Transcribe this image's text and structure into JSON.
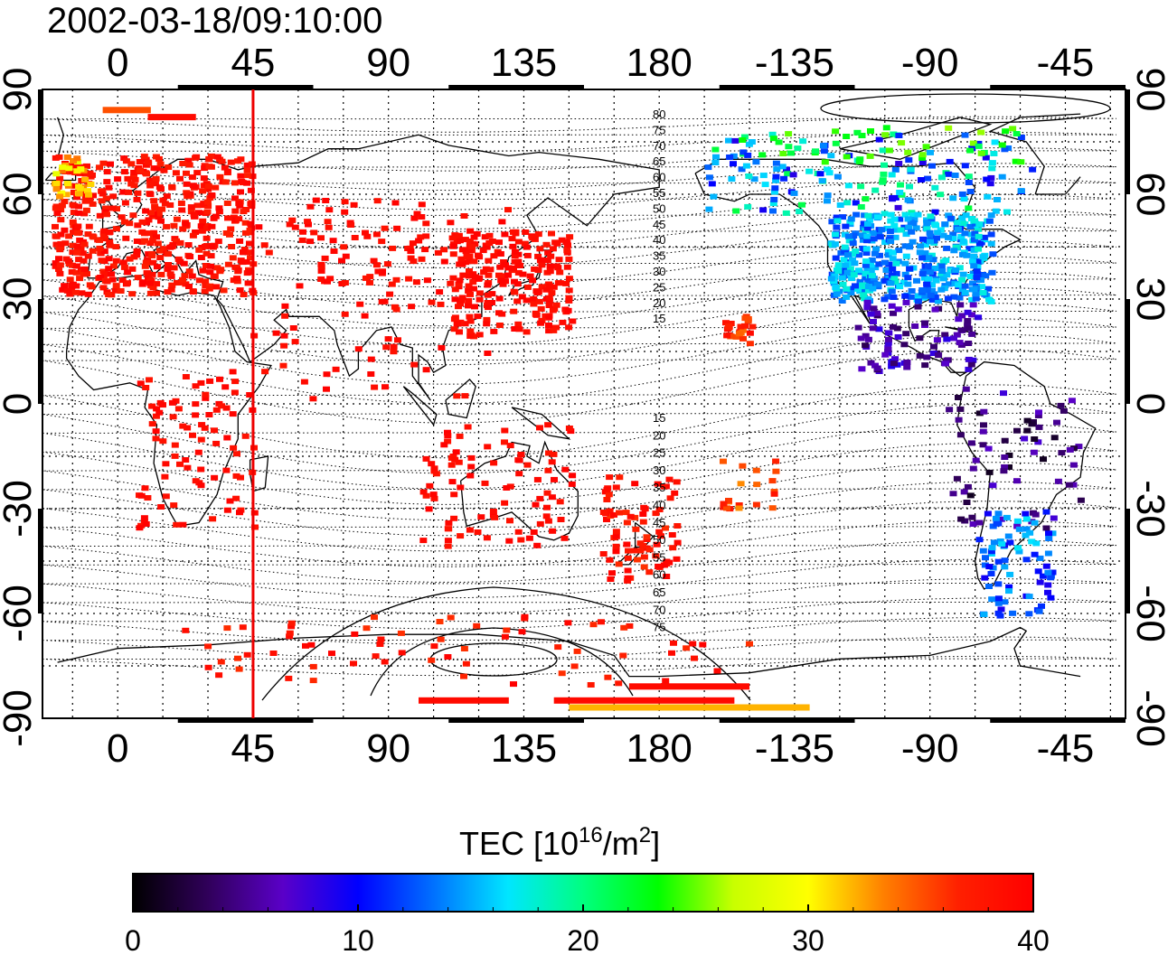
{
  "title": "2002-03-18/09:10:00",
  "axes": {
    "lon_ticks": [
      "0",
      "45",
      "90",
      "135",
      "180",
      "-135",
      "-90",
      "-45"
    ],
    "lat_ticks": [
      "90",
      "60",
      "30",
      "0",
      "-30",
      "-60",
      "-90"
    ]
  },
  "meridian_marker": {
    "lon": 45,
    "color": "#ee0000"
  },
  "contour_labels": {
    "north": [
      "80",
      "75",
      "70",
      "65",
      "60",
      "55",
      "50",
      "45",
      "40",
      "35",
      "30",
      "25",
      "20",
      "15"
    ],
    "south": [
      "15",
      "20",
      "25",
      "30",
      "35",
      "40",
      "45",
      "50",
      "55",
      "60",
      "65",
      "70",
      "75"
    ]
  },
  "colorbar": {
    "title_prefix": "TEC  [10",
    "title_exp1": "16",
    "title_mid": "/m",
    "title_exp2": "2",
    "title_suffix": "]",
    "tick_labels": [
      "0",
      "10",
      "20",
      "30",
      "40"
    ],
    "min": 0,
    "max": 40,
    "colors": [
      "#000000",
      "#30005a",
      "#5a00c8",
      "#0000ff",
      "#0070ff",
      "#00e6ff",
      "#00ff80",
      "#00ff00",
      "#c8ff00",
      "#ffff00",
      "#ff8000",
      "#ff2000",
      "#ff0000"
    ]
  }
}
